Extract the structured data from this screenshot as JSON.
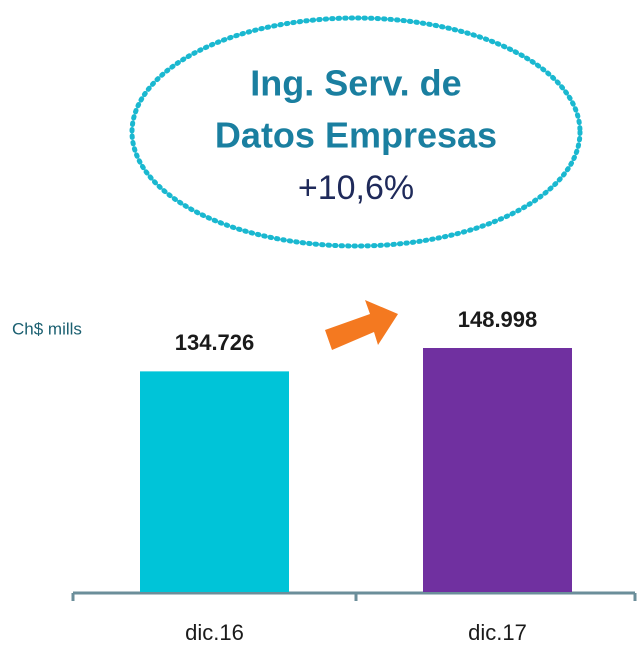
{
  "chart_data": {
    "type": "bar",
    "title": [
      "Ing. Serv. de",
      "Datos Empresas"
    ],
    "annotation": "+10,6%",
    "ylabel": "Ch$ mills",
    "categories": [
      "dic.16",
      "dic.17"
    ],
    "values": [
      134726,
      148998
    ],
    "value_labels": [
      "134.726",
      "148.998"
    ],
    "colors": [
      "#00c4d8",
      "#7030a0"
    ]
  }
}
